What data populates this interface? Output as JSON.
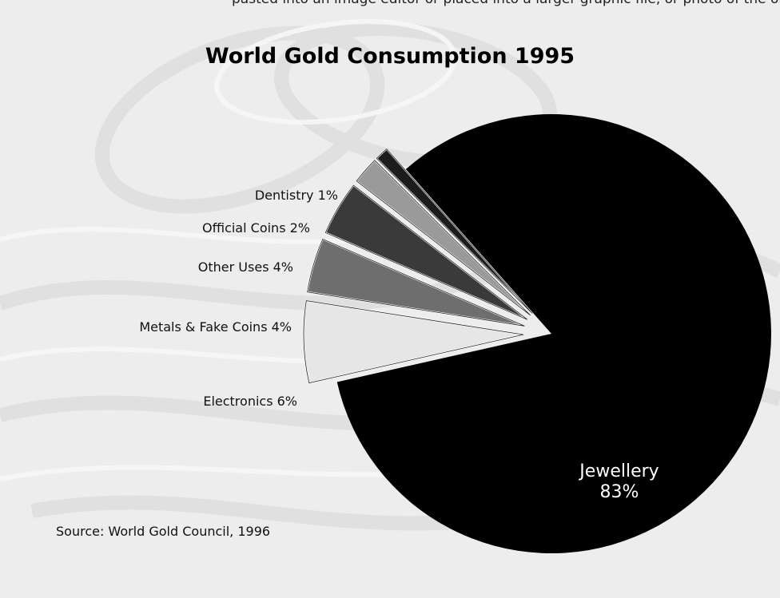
{
  "header_fragment": "pasted into an image editor or placed into a larger graphic file, or photo of the original",
  "chart_data": {
    "type": "pie",
    "title": "World Gold Consumption 1995",
    "source": "Source: World Gold Council, 1996",
    "slices": [
      {
        "label": "Jewellery",
        "value": 83,
        "pct_text": "83%",
        "color": "#000000",
        "exploded": false
      },
      {
        "label": "Electronics",
        "value": 6,
        "pct_text": "6%",
        "color": "#e6e6e6",
        "exploded": true
      },
      {
        "label": "Metals & Fake Coins",
        "value": 4,
        "pct_text": "4%",
        "color": "#6e6e6e",
        "exploded": true
      },
      {
        "label": "Other Uses",
        "value": 4,
        "pct_text": "4%",
        "color": "#3a3a3a",
        "exploded": true
      },
      {
        "label": "Official Coins",
        "value": 2,
        "pct_text": "2%",
        "color": "#9a9a9a",
        "exploded": true
      },
      {
        "label": "Dentistry",
        "value": 1,
        "pct_text": "1%",
        "color": "#1c1c1c",
        "exploded": true
      }
    ],
    "labels": {
      "dentistry": "Dentistry 1%",
      "official_coins": "Official Coins 2%",
      "other_uses": "Other Uses 4%",
      "metals": "Metals & Fake Coins 4%",
      "electronics": "Electronics 6%",
      "jewellery_name": "Jewellery",
      "jewellery_pct": "83%"
    }
  }
}
